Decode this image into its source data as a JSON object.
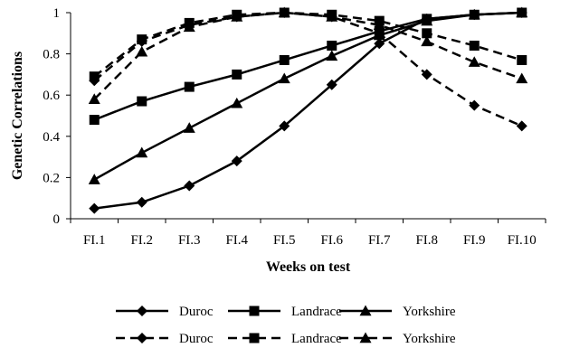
{
  "chart_data": {
    "type": "line",
    "title": "",
    "xlabel": "Weeks on test",
    "ylabel": "Genetic Correlations",
    "categories": [
      "FI.1",
      "FI.2",
      "FI.3",
      "FI.4",
      "FI.5",
      "FI.6",
      "FI.7",
      "FI.8",
      "FI.9",
      "FI.10"
    ],
    "ylim": [
      0,
      1
    ],
    "yticks": [
      "0",
      "0.2",
      "0.4",
      "0.6",
      "0.8",
      "1"
    ],
    "grid": false,
    "legend_position": "bottom",
    "series": [
      {
        "name": "Duroc",
        "style": "solid",
        "marker": "diamond",
        "values": [
          0.05,
          0.08,
          0.16,
          0.28,
          0.45,
          0.65,
          0.85,
          0.97,
          0.99,
          1.0
        ]
      },
      {
        "name": "Landrace",
        "style": "solid",
        "marker": "square",
        "values": [
          0.48,
          0.57,
          0.64,
          0.7,
          0.77,
          0.84,
          0.91,
          0.97,
          0.99,
          1.0
        ]
      },
      {
        "name": "Yorkshire",
        "style": "solid",
        "marker": "triangle",
        "values": [
          0.19,
          0.32,
          0.44,
          0.56,
          0.68,
          0.79,
          0.89,
          0.96,
          0.99,
          1.0
        ]
      },
      {
        "name": "Duroc",
        "style": "dashed",
        "marker": "diamond",
        "values": [
          0.67,
          0.86,
          0.94,
          0.98,
          1.0,
          0.98,
          0.9,
          0.7,
          0.55,
          0.45
        ]
      },
      {
        "name": "Landrace",
        "style": "dashed",
        "marker": "square",
        "values": [
          0.69,
          0.87,
          0.95,
          0.99,
          1.0,
          0.99,
          0.96,
          0.9,
          0.84,
          0.77
        ]
      },
      {
        "name": "Yorkshire",
        "style": "dashed",
        "marker": "triangle",
        "values": [
          0.58,
          0.81,
          0.93,
          0.98,
          1.0,
          0.98,
          0.94,
          0.86,
          0.76,
          0.68
        ]
      }
    ]
  }
}
